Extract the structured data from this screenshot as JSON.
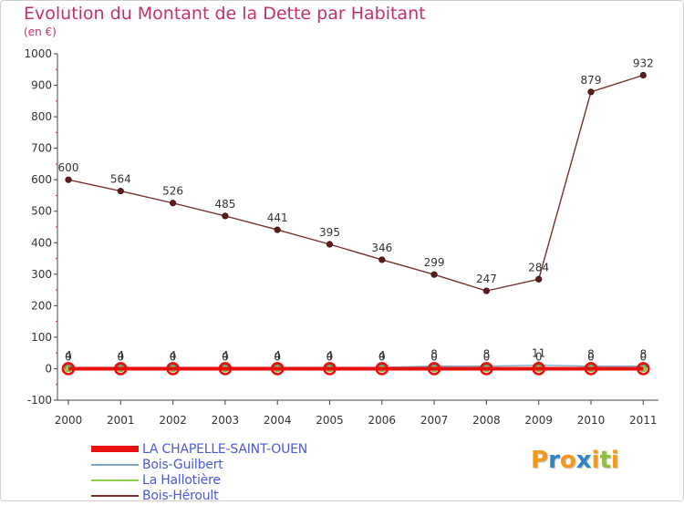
{
  "title": "Evolution du Montant de la Dette par Habitant",
  "unit": "(en €)",
  "logo": "Proxiti",
  "chart_data": {
    "type": "line",
    "title": "Evolution du Montant de la Dette par Habitant",
    "ylabel": "(en €)",
    "xlabel": "",
    "x": [
      "2000",
      "2001",
      "2002",
      "2003",
      "2004",
      "2005",
      "2006",
      "2007",
      "2008",
      "2009",
      "2010",
      "2011"
    ],
    "ylim": [
      -100,
      1000
    ],
    "yticks": [
      -100,
      0,
      100,
      200,
      300,
      400,
      500,
      600,
      700,
      800,
      900,
      1000
    ],
    "grid": false,
    "legend": "bottom-left",
    "series": [
      {
        "name": "LA CHAPELLE-SAINT-OUEN",
        "color": "#e8100a",
        "values": [
          0,
          0,
          0,
          0,
          0,
          0,
          0,
          0,
          0,
          0,
          0,
          0
        ],
        "labels": false
      },
      {
        "name": "Bois-Guilbert",
        "color": "#7fa8c8",
        "values": [
          4,
          4,
          4,
          4,
          4,
          4,
          4,
          8,
          8,
          11,
          8,
          8
        ],
        "labels": true
      },
      {
        "name": "La Hallotière",
        "color": "#8fd24a",
        "values": [
          0,
          0,
          0,
          0,
          0,
          0,
          0,
          0,
          0,
          0,
          0,
          0
        ],
        "labels": true
      },
      {
        "name": "Bois-Héroult",
        "color": "#7a2f2f",
        "values": [
          600,
          564,
          526,
          485,
          441,
          395,
          346,
          299,
          247,
          284,
          879,
          932
        ],
        "labels": true
      }
    ]
  }
}
